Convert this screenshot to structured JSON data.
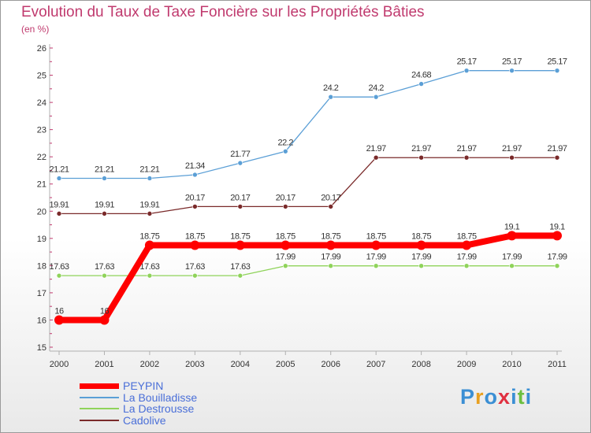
{
  "chart_data": {
    "type": "line",
    "title": "Evolution du Taux de Taxe Foncière sur les Propriétés Bâties",
    "subtitle": "(en %)",
    "categories": [
      "2000",
      "2001",
      "2002",
      "2003",
      "2004",
      "2005",
      "2006",
      "2007",
      "2008",
      "2009",
      "2010",
      "2011"
    ],
    "ylim": [
      15,
      26
    ],
    "yticks": [
      15,
      16,
      17,
      18,
      19,
      20,
      21,
      22,
      23,
      24,
      25,
      26
    ],
    "series": [
      {
        "name": "La Bouilladisse",
        "color": "#5b9fd6",
        "values": [
          21.21,
          21.21,
          21.21,
          21.34,
          21.77,
          22.2,
          24.2,
          24.2,
          24.68,
          25.17,
          25.17,
          25.17
        ],
        "labels": [
          "21.21",
          "21.21",
          "21.21",
          "21.34",
          "21.77",
          "22.2",
          "24.2",
          "24.2",
          "24.68",
          "25.17",
          "25.17",
          "25.17"
        ]
      },
      {
        "name": "Cadolive",
        "color": "#7a2a2a",
        "values": [
          19.91,
          19.91,
          19.91,
          20.17,
          20.17,
          20.17,
          20.17,
          21.97,
          21.97,
          21.97,
          21.97,
          21.97
        ],
        "labels": [
          "19.91",
          "19.91",
          "19.91",
          "20.17",
          "20.17",
          "20.17",
          "20.17",
          "21.97",
          "21.97",
          "21.97",
          "21.97",
          "21.97"
        ]
      },
      {
        "name": "La Destrousse",
        "color": "#8fd35a",
        "values": [
          17.63,
          17.63,
          17.63,
          17.63,
          17.63,
          17.99,
          17.99,
          17.99,
          17.99,
          17.99,
          17.99,
          17.99
        ],
        "labels": [
          "17.63",
          "17.63",
          "17.63",
          "17.63",
          "17.63",
          "17.99",
          "17.99",
          "17.99",
          "17.99",
          "17.99",
          "17.99",
          "17.99"
        ]
      },
      {
        "name": "PEYPIN",
        "color": "#ff0000",
        "values": [
          16,
          16,
          18.75,
          18.75,
          18.75,
          18.75,
          18.75,
          18.75,
          18.75,
          18.75,
          19.1,
          19.1
        ],
        "labels": [
          "16",
          "16",
          "18.75",
          "18.75",
          "18.75",
          "18.75",
          "18.75",
          "18.75",
          "18.75",
          "18.75",
          "19.1",
          "19.1"
        ]
      }
    ]
  },
  "legend": {
    "items": [
      {
        "label": "PEYPIN",
        "color": "#ff0000"
      },
      {
        "label": "La Bouilladisse",
        "color": "#5b9fd6"
      },
      {
        "label": "La Destrousse",
        "color": "#8fd35a"
      },
      {
        "label": "Cadolive",
        "color": "#7a2a2a"
      }
    ]
  },
  "logo": {
    "letters": [
      "P",
      "r",
      "o",
      "x",
      "i",
      "t",
      "i"
    ],
    "colors": [
      "#3b8fd4",
      "#e8a020",
      "#3b8fd4",
      "#e03040",
      "#3b8fd4",
      "#6cbf40",
      "#3b8fd4"
    ]
  }
}
